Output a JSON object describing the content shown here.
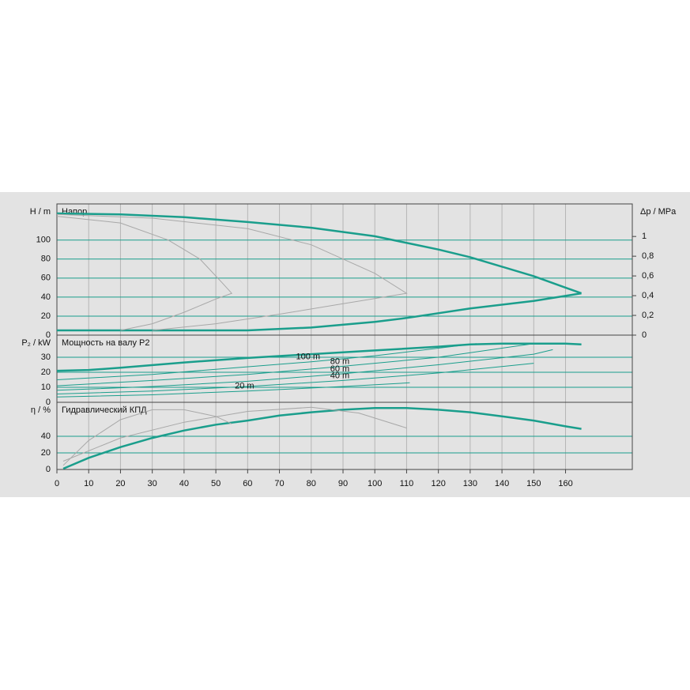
{
  "chart_data": [
    {
      "type": "line",
      "title": "Напор",
      "ylabel": "H / m",
      "y2label": "Δp / MPa",
      "xlim": [
        0,
        181
      ],
      "xticks": [
        0,
        10,
        20,
        30,
        40,
        50,
        60,
        70,
        80,
        90,
        100,
        110,
        120,
        130,
        140,
        150,
        160
      ],
      "ylim": [
        0,
        138
      ],
      "yticks": [
        0,
        20,
        40,
        60,
        80,
        100
      ],
      "y2lim": [
        0,
        1.33
      ],
      "y2ticks": [
        0,
        {
          "value": 0.2,
          "label": "0,2"
        },
        {
          "value": 0.4,
          "label": "0,4"
        },
        {
          "value": 0.6,
          "label": "0,6"
        },
        {
          "value": 0.8,
          "label": "0,8"
        },
        1
      ],
      "grid": true,
      "series": [
        {
          "color": "#1a9e8c",
          "width": 2.5,
          "x": [
            0,
            20,
            40,
            60,
            80,
            100,
            120,
            130,
            140,
            150,
            160,
            165
          ],
          "values": [
            128,
            127,
            124,
            119,
            113,
            104,
            90,
            82,
            72,
            62,
            50,
            44
          ]
        },
        {
          "color": "#1a9e8c",
          "width": 2.5,
          "x": [
            0,
            30,
            60,
            80,
            100,
            110,
            130,
            150,
            165
          ],
          "values": [
            5,
            5,
            5,
            8,
            14,
            18,
            28,
            36,
            44
          ]
        },
        {
          "color": "#a8a8a8",
          "width": 1,
          "x": [
            0,
            20,
            35,
            45,
            52,
            55,
            50,
            40,
            30,
            20
          ],
          "values": [
            125,
            118,
            100,
            80,
            55,
            44,
            38,
            24,
            12,
            5
          ]
        },
        {
          "color": "#a8a8a8",
          "width": 1,
          "x": [
            0,
            30,
            60,
            80,
            100,
            110,
            90,
            70,
            50,
            30
          ],
          "values": [
            127,
            123,
            112,
            95,
            65,
            44,
            33,
            22,
            12,
            5
          ]
        }
      ]
    },
    {
      "type": "line",
      "title": "Мощность на валу P2",
      "ylabel": "P₂ / kW",
      "xlim": [
        0,
        181
      ],
      "xticks": [
        0,
        10,
        20,
        30,
        40,
        50,
        60,
        70,
        80,
        90,
        100,
        110,
        120,
        130,
        140,
        150,
        160
      ],
      "ylim": [
        0,
        44.7
      ],
      "yticks": [
        0,
        10,
        20,
        30
      ],
      "grid": true,
      "series": [
        {
          "color": "#1a9e8c",
          "width": 2.5,
          "x": [
            0,
            10,
            20,
            40,
            60,
            80,
            100,
            120,
            130,
            140,
            150,
            160,
            165
          ],
          "values": [
            21,
            21.5,
            23,
            26.5,
            29.5,
            32,
            34.5,
            37,
            38.5,
            39,
            39,
            39,
            38.5
          ]
        },
        {
          "name": "100 m",
          "color": "#1a9e8c",
          "width": 1,
          "x": [
            0,
            30,
            50,
            80,
            100,
            120,
            132
          ],
          "values": [
            15,
            18.5,
            22,
            27,
            31,
            36,
            39
          ]
        },
        {
          "name": "80 m",
          "color": "#1a9e8c",
          "width": 1,
          "x": [
            0,
            30,
            60,
            90,
            120,
            150
          ],
          "values": [
            11,
            14.5,
            18.5,
            24,
            30,
            39
          ]
        },
        {
          "name": "60 m",
          "color": "#1a9e8c",
          "width": 1,
          "x": [
            0,
            30,
            60,
            90,
            120,
            150,
            156
          ],
          "values": [
            8,
            10.5,
            14,
            19,
            25,
            32,
            35
          ]
        },
        {
          "name": "40 m",
          "color": "#1a9e8c",
          "width": 1,
          "x": [
            0,
            30,
            60,
            90,
            120,
            150
          ],
          "values": [
            5.5,
            7.5,
            10.5,
            14.5,
            19.5,
            26
          ]
        },
        {
          "name": "20 m",
          "color": "#1a9e8c",
          "width": 1,
          "x": [
            0,
            30,
            60,
            90,
            111
          ],
          "values": [
            3.5,
            5,
            7.5,
            10.5,
            13
          ]
        }
      ]
    },
    {
      "type": "line",
      "title": "Гидравлический КПД",
      "ylabel": "η / %",
      "xlim": [
        0,
        181
      ],
      "xticks": [
        0,
        10,
        20,
        30,
        40,
        50,
        60,
        70,
        80,
        90,
        100,
        110,
        120,
        130,
        140,
        150,
        160
      ],
      "ylim": [
        0,
        81
      ],
      "yticks": [
        0,
        20,
        40
      ],
      "grid": true,
      "series": [
        {
          "color": "#1a9e8c",
          "width": 2.5,
          "x": [
            2,
            10,
            20,
            30,
            40,
            50,
            60,
            70,
            80,
            90,
            100,
            110,
            120,
            130,
            140,
            150,
            160,
            165
          ],
          "values": [
            1,
            14,
            27,
            38,
            47,
            54,
            59,
            65,
            69,
            72,
            74,
            74,
            72,
            69,
            64,
            59,
            52,
            49
          ]
        },
        {
          "color": "#a8a8a8",
          "width": 1,
          "x": [
            2,
            10,
            20,
            30,
            40,
            50,
            55
          ],
          "values": [
            5,
            35,
            60,
            72,
            72,
            64,
            55
          ]
        },
        {
          "color": "#a8a8a8",
          "width": 1,
          "x": [
            2,
            20,
            40,
            60,
            80,
            95,
            110
          ],
          "values": [
            10,
            38,
            57,
            70,
            75,
            68,
            50
          ]
        }
      ]
    }
  ]
}
